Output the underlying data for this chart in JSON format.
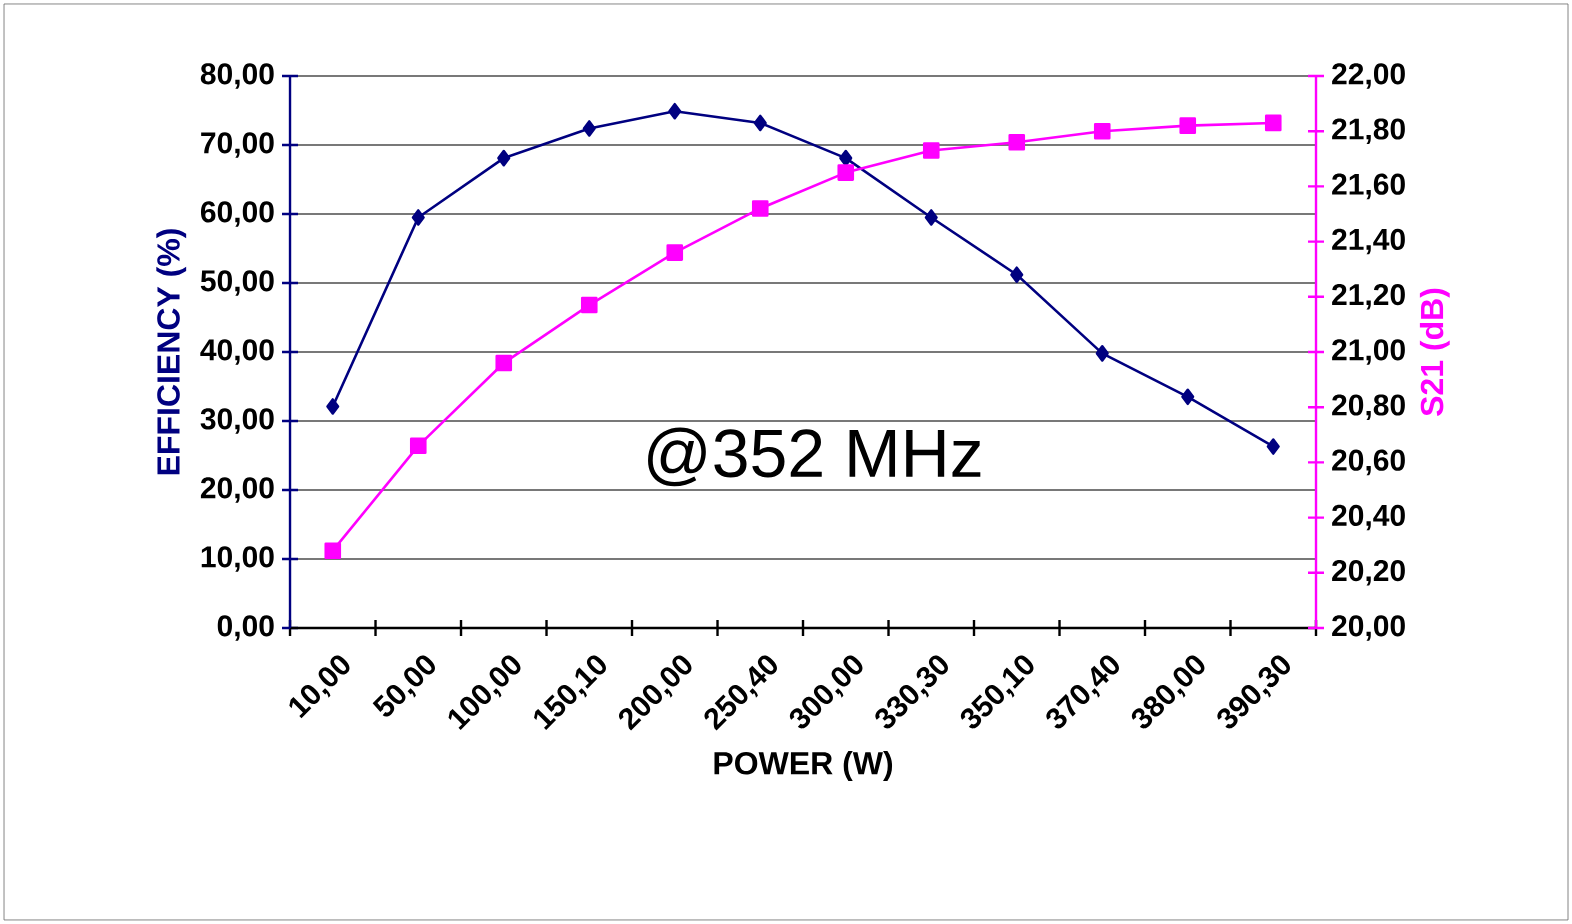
{
  "chart_data": {
    "type": "line",
    "xlabel": "POWER (W)",
    "ylabel": "EFFICIENCY (%)",
    "y2label": "S21 (dB)",
    "categories": [
      "10,00",
      "50,00",
      "100,00",
      "150,10",
      "200,00",
      "250,40",
      "300,00",
      "330,30",
      "350,10",
      "370,40",
      "380,00",
      "390,30"
    ],
    "series": [
      {
        "color": "#000080",
        "marker": "diamond",
        "values": [
          32.1,
          59.5,
          68.1,
          72.4,
          74.9,
          73.2,
          68.1,
          59.5,
          51.2,
          39.8,
          33.5,
          26.3
        ]
      },
      {
        "color": "#ff00ff",
        "marker": "square",
        "axis": "y2",
        "values": [
          20.28,
          20.66,
          20.96,
          21.17,
          21.36,
          21.52,
          21.65,
          21.73,
          21.76,
          21.8,
          21.82,
          21.83
        ]
      }
    ],
    "ylim": [
      0,
      80
    ],
    "yticks": [
      {
        "value": 0,
        "label": "0,00"
      },
      {
        "value": 10,
        "label": "10,00"
      },
      {
        "value": 20,
        "label": "20,00"
      },
      {
        "value": 30,
        "label": "30,00"
      },
      {
        "value": 40,
        "label": "40,00"
      },
      {
        "value": 50,
        "label": "50,00"
      },
      {
        "value": 60,
        "label": "60,00"
      },
      {
        "value": 70,
        "label": "70,00"
      },
      {
        "value": 80,
        "label": "80,00"
      }
    ],
    "y2lim": [
      20,
      22
    ],
    "y2ticks": [
      {
        "value": 20,
        "label": "20,00"
      },
      {
        "value": 20.2,
        "label": "20,20"
      },
      {
        "value": 20.4,
        "label": "20,40"
      },
      {
        "value": 20.6,
        "label": "20,60"
      },
      {
        "value": 20.8,
        "label": "20,80"
      },
      {
        "value": 21,
        "label": "21,00"
      },
      {
        "value": 21.2,
        "label": "21,20"
      },
      {
        "value": 21.4,
        "label": "21,40"
      },
      {
        "value": 21.6,
        "label": "21,60"
      },
      {
        "value": 21.8,
        "label": "21,80"
      },
      {
        "value": 22,
        "label": "22,00"
      }
    ],
    "grid": "y",
    "annotations": [
      "@352 MHz"
    ]
  }
}
